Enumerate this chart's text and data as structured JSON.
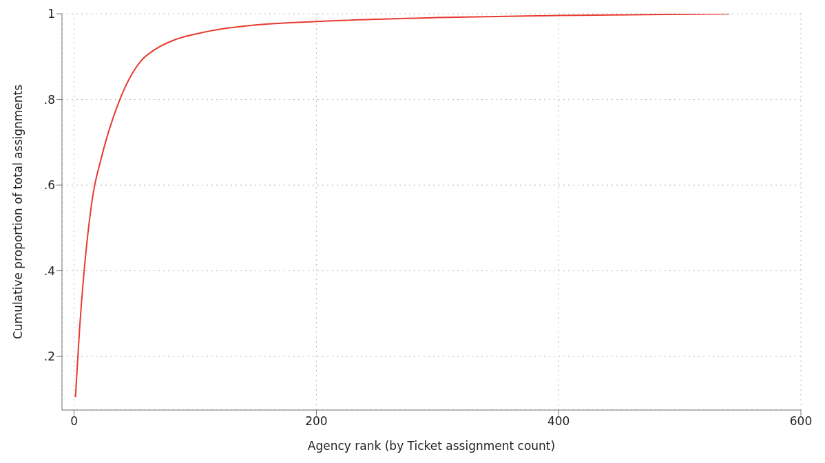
{
  "chart_data": {
    "type": "line",
    "xlabel": "Agency rank (by Ticket assignment count)",
    "ylabel": "Cumulative proportion of total assignments",
    "series": [
      {
        "color": "#e8392f",
        "x": [
          1.1,
          4.5,
          8,
          11.4,
          15.9,
          21.6,
          28.4,
          37.5,
          46.5,
          55.6,
          67,
          82.9,
          101,
          123,
          150,
          200,
          300,
          400,
          541
        ],
        "values": [
          0.105,
          0.263,
          0.391,
          0.487,
          0.583,
          0.654,
          0.724,
          0.798,
          0.853,
          0.891,
          0.917,
          0.939,
          0.953,
          0.965,
          0.974,
          0.982,
          0.991,
          0.996,
          1.0
        ]
      }
    ],
    "xlim": [
      -10,
      600
    ],
    "xticks": [
      0,
      200,
      400,
      600
    ],
    "ylim": [
      0.075,
      1.0
    ],
    "yticks": [
      {
        "value": 0.2,
        "label": ".2"
      },
      {
        "value": 0.4,
        "label": ".4"
      },
      {
        "value": 0.6,
        "label": ".6"
      },
      {
        "value": 0.8,
        "label": ".8"
      },
      1
    ],
    "grid": true,
    "marker": "none",
    "line_style": "solid"
  }
}
